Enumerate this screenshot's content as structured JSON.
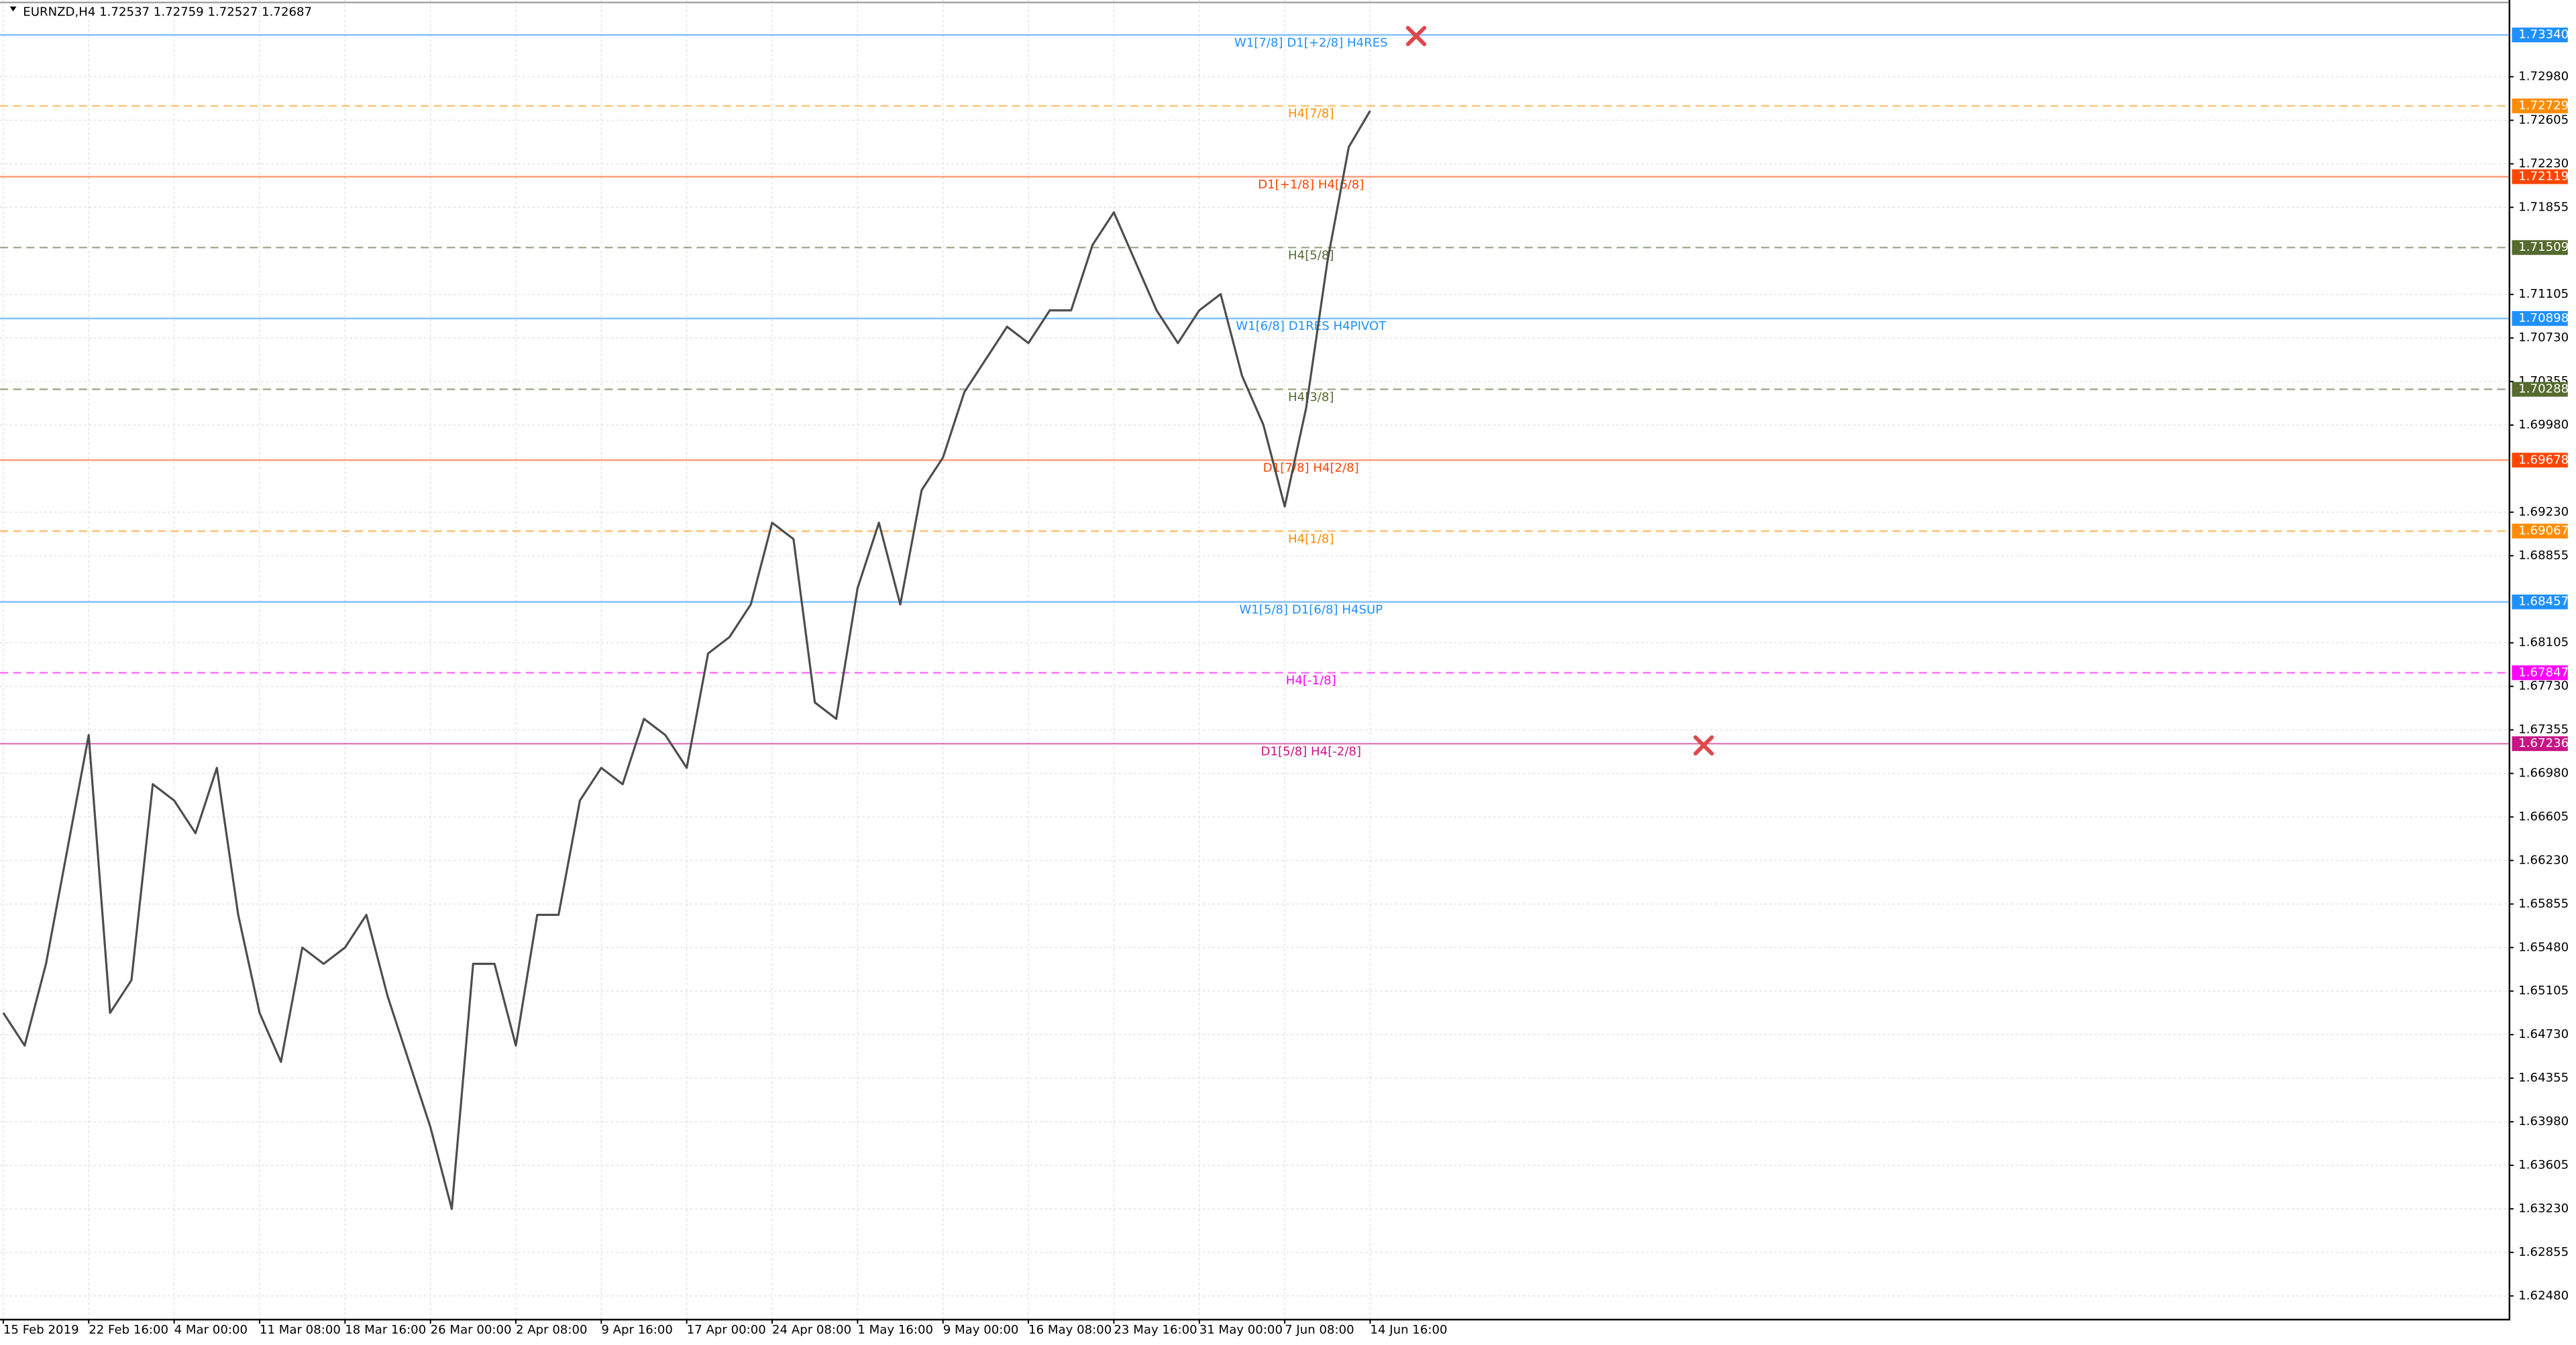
{
  "chart_data": {
    "type": "line",
    "title": "EURNZD,H4  1.72537 1.72759 1.72527 1.72687",
    "color": "#4d4d4d",
    "grid": true,
    "categories": [
      "15 Feb 2019",
      null,
      null,
      null,
      "22 Feb 16:00",
      null,
      null,
      null,
      "4 Mar 00:00",
      null,
      null,
      null,
      "11 Mar 08:00",
      null,
      null,
      null,
      "18 Mar 16:00",
      null,
      null,
      null,
      "26 Mar 00:00",
      null,
      null,
      null,
      "2 Apr 08:00",
      null,
      null,
      null,
      "9 Apr 16:00",
      null,
      null,
      null,
      "17 Apr 00:00",
      null,
      null,
      null,
      "24 Apr 08:00",
      null,
      null,
      null,
      "1 May 16:00",
      null,
      null,
      null,
      "9 May 00:00",
      null,
      null,
      null,
      "16 May 08:00",
      null,
      null,
      null,
      "23 May 16:00",
      null,
      null,
      null,
      "31 May 00:00",
      null,
      null,
      null,
      "7 Jun 08:00",
      null,
      null,
      null,
      "14 Jun 16:00"
    ],
    "values": [
      1.64918,
      1.64636,
      1.6534,
      1.66325,
      1.6731,
      1.64918,
      1.65199,
      1.66887,
      1.66747,
      1.66465,
      1.67028,
      1.65762,
      1.64918,
      1.64496,
      1.6548,
      1.6534,
      1.6548,
      1.65762,
      1.65058,
      1.64496,
      1.63933,
      1.63229,
      1.6534,
      1.6534,
      1.64636,
      1.65762,
      1.65762,
      1.66747,
      1.67028,
      1.66887,
      1.6745,
      1.6731,
      1.67028,
      1.68013,
      1.68154,
      1.68435,
      1.69139,
      1.68998,
      1.67591,
      1.6745,
      1.68576,
      1.69139,
      1.68435,
      1.6942,
      1.69701,
      1.70264,
      1.70546,
      1.70827,
      1.70686,
      1.70968,
      1.70968,
      1.71531,
      1.71812,
      1.7139,
      1.70968,
      1.70686,
      1.70968,
      1.71108,
      1.70405,
      1.69983,
      1.69279,
      1.70124,
      1.7139,
      1.72375,
      1.72687
    ],
    "ylim": [
      1.62283,
      1.73641
    ],
    "yticks": [
      {
        "value": 1.7298,
        "label": "1.72980"
      },
      {
        "value": 1.72605,
        "label": "1.72605"
      },
      {
        "value": 1.7223,
        "label": "1.72230"
      },
      {
        "value": 1.71855,
        "label": "1.71855"
      },
      {
        "value": 1.71105,
        "label": "1.71105"
      },
      {
        "value": 1.7073,
        "label": "1.70730"
      },
      {
        "value": 1.70355,
        "label": "1.70355"
      },
      {
        "value": 1.6998,
        "label": "1.69980"
      },
      {
        "value": 1.6923,
        "label": "1.69230"
      },
      {
        "value": 1.68855,
        "label": "1.68855"
      },
      {
        "value": 1.68105,
        "label": "1.68105"
      },
      {
        "value": 1.6773,
        "label": "1.67730"
      },
      {
        "value": 1.67355,
        "label": "1.67355"
      },
      {
        "value": 1.6698,
        "label": "1.66980"
      },
      {
        "value": 1.66605,
        "label": "1.66605"
      },
      {
        "value": 1.6623,
        "label": "1.66230"
      },
      {
        "value": 1.65855,
        "label": "1.65855"
      },
      {
        "value": 1.6548,
        "label": "1.65480"
      },
      {
        "value": 1.65105,
        "label": "1.65105"
      },
      {
        "value": 1.6473,
        "label": "1.64730"
      },
      {
        "value": 1.64355,
        "label": "1.64355"
      },
      {
        "value": 1.6398,
        "label": "1.63980"
      },
      {
        "value": 1.63605,
        "label": "1.63605"
      },
      {
        "value": 1.6323,
        "label": "1.63230"
      },
      {
        "value": 1.62855,
        "label": "1.62855"
      },
      {
        "value": 1.6248,
        "label": "1.62480"
      }
    ],
    "levels": [
      {
        "price": {
          "value": 1.7334,
          "label": "1.73340"
        },
        "name": "W1[7/8] D1[+2/8] H4RES",
        "color": "#1e90ff",
        "dashed": false
      },
      {
        "price": {
          "value": 1.72729,
          "label": "1.72729"
        },
        "name": "H4[7/8]",
        "color": "#ff8c00",
        "dashed": true
      },
      {
        "price": {
          "value": 1.72119,
          "label": "1.72119"
        },
        "name": "D1[+1/8] H4[6/8]",
        "color": "#ff4500",
        "dashed": false
      },
      {
        "price": {
          "value": 1.71509,
          "label": "1.71509"
        },
        "name": "H4[5/8]",
        "color": "#556b2f",
        "dashed": true
      },
      {
        "price": {
          "value": 1.70898,
          "label": "1.70898"
        },
        "name": "W1[6/8] D1RES H4PIVOT",
        "color": "#1e90ff",
        "dashed": false
      },
      {
        "price": {
          "value": 1.70288,
          "label": "1.70288"
        },
        "name": "H4[3/8]",
        "color": "#556b2f",
        "dashed": true
      },
      {
        "price": {
          "value": 1.69678,
          "label": "1.69678"
        },
        "name": "D1[7/8] H4[2/8]",
        "color": "#ff4500",
        "dashed": false
      },
      {
        "price": {
          "value": 1.69067,
          "label": "1.69067"
        },
        "name": "H4[1/8]",
        "color": "#ff8c00",
        "dashed": true
      },
      {
        "price": {
          "value": 1.68457,
          "label": "1.68457"
        },
        "name": "W1[5/8] D1[6/8] H4SUP",
        "color": "#1e90ff",
        "dashed": false
      },
      {
        "price": {
          "value": 1.67847,
          "label": "1.67847"
        },
        "name": "H4[-1/8]",
        "color": "#ff00ff",
        "dashed": true
      },
      {
        "price": {
          "value": 1.67236,
          "label": "1.67236"
        },
        "name": "D1[5/8] H4[-2/8]",
        "color": "#c71585",
        "dashed": false
      }
    ]
  }
}
